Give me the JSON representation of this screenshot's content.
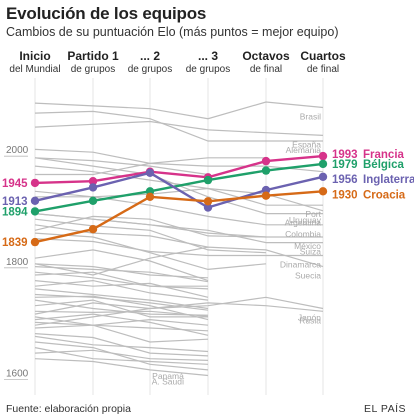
{
  "header": {
    "title": "Evolución de los equipos",
    "subtitle": "Cambios de su puntuación Elo (más puntos = mejor equipo)"
  },
  "footer": {
    "source": "Fuente: elaboración propia",
    "brand": "EL PAÍS"
  },
  "chart_data": {
    "type": "line",
    "title": "Evolución de los equipos",
    "subtitle": "Cambios de su puntuación Elo (más puntos = mejor equipo)",
    "stages": [
      {
        "main": "Inicio",
        "sub": "del Mundial"
      },
      {
        "main": "Partido 1",
        "sub": "de grupos"
      },
      {
        "main": "... 2",
        "sub": "de grupos"
      },
      {
        "main": "... 3",
        "sub": "de grupos"
      },
      {
        "main": "Octavos",
        "sub": "de final"
      },
      {
        "main": "Cuartos",
        "sub": "de final"
      }
    ],
    "y_ticks": [
      2000,
      1800,
      1600
    ],
    "ylim": [
      1565,
      2115
    ],
    "grid": true,
    "highlighted": [
      {
        "name": "Francia",
        "color": "#d6338a",
        "final_value": 1993,
        "values": [
          1945,
          1948,
          1965,
          1955,
          1984,
          1993
        ]
      },
      {
        "name": "Bélgica",
        "color": "#1fa06a",
        "final_value": 1979,
        "values": [
          1894,
          1913,
          1930,
          1950,
          1967,
          1979
        ]
      },
      {
        "name": "Inglaterra",
        "color": "#6b62b0",
        "final_value": 1956,
        "values": [
          1913,
          1937,
          1963,
          1901,
          1932,
          1956
        ]
      },
      {
        "name": "Croacia",
        "color": "#d66a17",
        "final_value": 1930,
        "values": [
          1839,
          1862,
          1920,
          1912,
          1922,
          1930
        ]
      }
    ],
    "labeled_background_series": [
      {
        "name": "Brasil",
        "values": [
          2088,
          2083,
          2078,
          2060,
          2090,
          2080
        ]
      },
      {
        "name": "España",
        "values": [
          2045,
          2050,
          2055,
          2040,
          2035,
          2030
        ]
      },
      {
        "name": "Alemania",
        "values": [
          2070,
          2073,
          2060,
          2020,
          2020,
          2020
        ]
      },
      {
        "name": "Argentina",
        "values": [
          1990,
          1975,
          1960,
          1920,
          1890,
          1890
        ]
      },
      {
        "name": "Port",
        "values": [
          1975,
          1965,
          1950,
          1935,
          1905,
          1905
        ]
      },
      {
        "name": "Uruguay",
        "values": [
          1920,
          1920,
          1925,
          1935,
          1925,
          1895
        ]
      },
      {
        "name": "Colombia",
        "values": [
          1930,
          1920,
          1905,
          1885,
          1870,
          1870
        ]
      },
      {
        "name": "México",
        "values": [
          1860,
          1885,
          1880,
          1850,
          1848,
          1848
        ]
      },
      {
        "name": "Dinamarca",
        "values": [
          1845,
          1840,
          1822,
          1815,
          1815,
          1815
        ]
      },
      {
        "name": "Suiza",
        "values": [
          1890,
          1880,
          1870,
          1860,
          1838,
          1838
        ]
      },
      {
        "name": "Suecia",
        "values": [
          1800,
          1780,
          1810,
          1830,
          1825,
          1795
        ]
      },
      {
        "name": "Japón",
        "values": [
          1710,
          1730,
          1720,
          1725,
          1740,
          1720
        ]
      },
      {
        "name": "Rusia",
        "values": [
          1690,
          1705,
          1720,
          1730,
          1725,
          1715
        ]
      },
      {
        "name": "Panamá",
        "values": [
          1660,
          1650,
          1620,
          1610
        ]
      },
      {
        "name": "A. Saudí",
        "values": [
          1630,
          1625,
          1610,
          1600
        ]
      }
    ],
    "unlabeled_background_series": [
      [
        2005,
        2000,
        1980,
        1975,
        1975,
        1965
      ],
      [
        1990,
        1985,
        1975,
        1960
      ],
      [
        1960,
        1960,
        1980,
        1990,
        1990
      ],
      [
        1890,
        1880,
        1870,
        1855,
        1848
      ],
      [
        1880,
        1868,
        1860,
        1825,
        1820
      ],
      [
        1870,
        1855,
        1850,
        1830
      ],
      [
        1855,
        1848,
        1820,
        1790,
        1800
      ],
      [
        1810,
        1825,
        1805,
        1770
      ],
      [
        1800,
        1795,
        1780,
        1775
      ],
      [
        1795,
        1790,
        1785,
        1768
      ],
      [
        1785,
        1775,
        1760,
        1760
      ],
      [
        1780,
        1785,
        1760,
        1755
      ],
      [
        1770,
        1760,
        1765,
        1740
      ],
      [
        1760,
        1770,
        1748,
        1735
      ],
      [
        1755,
        1745,
        1735,
        1720
      ],
      [
        1745,
        1740,
        1730,
        1717
      ],
      [
        1740,
        1742,
        1725,
        1700
      ],
      [
        1735,
        1720,
        1710,
        1708
      ],
      [
        1725,
        1735,
        1705,
        1705
      ],
      [
        1715,
        1713,
        1715,
        1706
      ],
      [
        1705,
        1690,
        1700,
        1690
      ],
      [
        1700,
        1710,
        1695,
        1672
      ],
      [
        1695,
        1690,
        1685,
        1680
      ],
      [
        1685,
        1690,
        1660,
        1665
      ],
      [
        1675,
        1668,
        1640,
        1635
      ],
      [
        1670,
        1655,
        1650,
        1643
      ],
      [
        1650,
        1630,
        1625,
        1620
      ],
      [
        1640,
        1645,
        1630,
        1627
      ]
    ]
  }
}
